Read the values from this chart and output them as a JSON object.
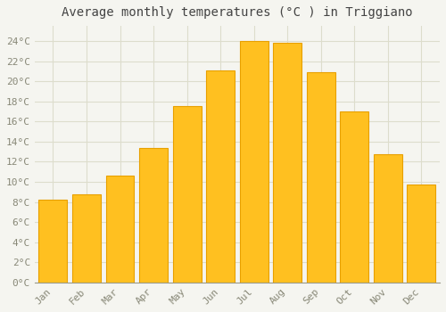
{
  "title": "Average monthly temperatures (°C ) in Triggiano",
  "months": [
    "Jan",
    "Feb",
    "Mar",
    "Apr",
    "May",
    "Jun",
    "Jul",
    "Aug",
    "Sep",
    "Oct",
    "Nov",
    "Dec"
  ],
  "temperatures": [
    8.2,
    8.8,
    10.6,
    13.4,
    17.5,
    21.1,
    24.0,
    23.8,
    20.9,
    17.0,
    12.7,
    9.7
  ],
  "bar_color": "#FFC020",
  "bar_edge_color": "#E8A000",
  "background_color": "#F5F5F0",
  "plot_bg_color": "#F5F5F0",
  "grid_color": "#DDDDCC",
  "ylim": [
    0,
    25.5
  ],
  "yticks": [
    0,
    2,
    4,
    6,
    8,
    10,
    12,
    14,
    16,
    18,
    20,
    22,
    24
  ],
  "ytick_labels": [
    "0°C",
    "2°C",
    "4°C",
    "6°C",
    "8°C",
    "10°C",
    "12°C",
    "14°C",
    "16°C",
    "18°C",
    "20°C",
    "22°C",
    "24°C"
  ],
  "title_fontsize": 10,
  "tick_fontsize": 8,
  "font_family": "monospace",
  "tick_color": "#888877",
  "bar_width": 0.85,
  "spine_color": "#999988"
}
